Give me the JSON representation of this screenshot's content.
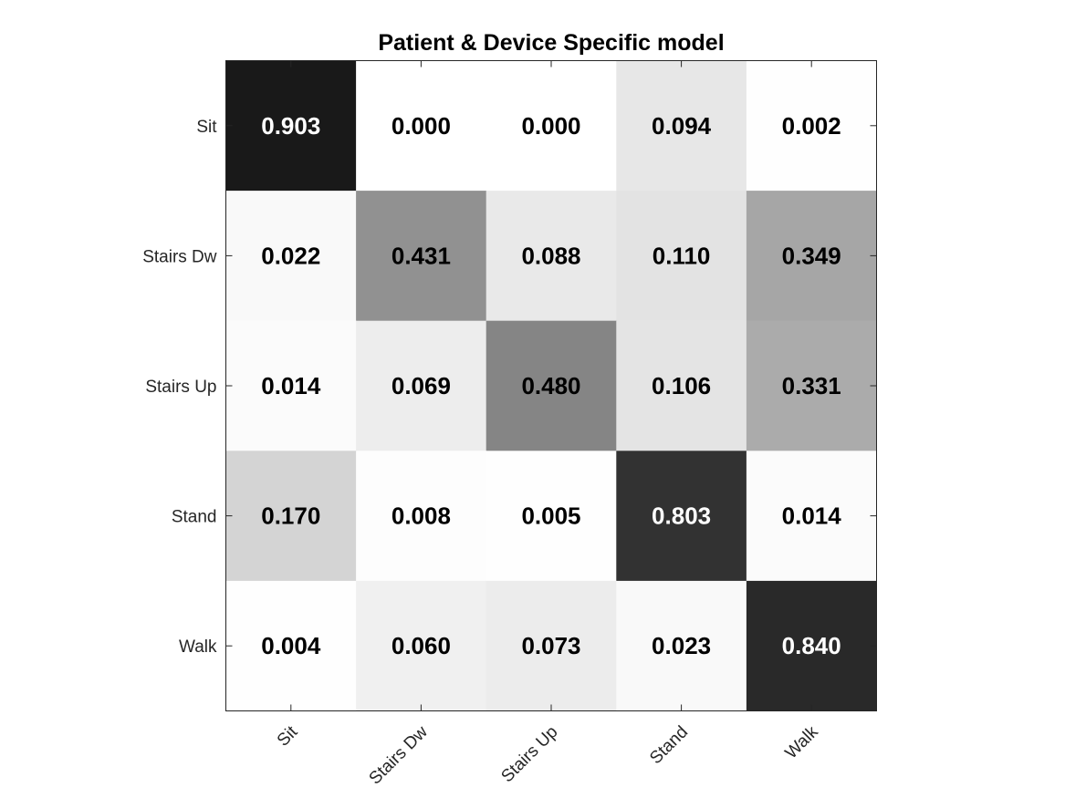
{
  "chart_data": {
    "type": "heatmap",
    "title": "Patient & Device Specific model",
    "xlabel": "",
    "ylabel": "",
    "x_categories": [
      "Sit",
      "Stairs Dw",
      "Stairs Up",
      "Stand",
      "Walk"
    ],
    "y_categories": [
      "Sit",
      "Stairs Dw",
      "Stairs Up",
      "Stand",
      "Walk"
    ],
    "values": [
      [
        0.903,
        0.0,
        0.0,
        0.094,
        0.002
      ],
      [
        0.022,
        0.431,
        0.088,
        0.11,
        0.349
      ],
      [
        0.014,
        0.069,
        0.48,
        0.106,
        0.331
      ],
      [
        0.17,
        0.008,
        0.005,
        0.803,
        0.014
      ],
      [
        0.004,
        0.06,
        0.073,
        0.023,
        0.84
      ]
    ],
    "value_labels": [
      [
        "0.903",
        "0.000",
        "0.000",
        "0.094",
        "0.002"
      ],
      [
        "0.022",
        "0.431",
        "0.088",
        "0.110",
        "0.349"
      ],
      [
        "0.014",
        "0.069",
        "0.480",
        "0.106",
        "0.331"
      ],
      [
        "0.170",
        "0.008",
        "0.005",
        "0.803",
        "0.014"
      ],
      [
        "0.004",
        "0.060",
        "0.073",
        "0.023",
        "0.840"
      ]
    ],
    "colormap": "grayscale-reversed",
    "color_range": [
      0,
      1
    ],
    "grid": false,
    "legend": "none"
  }
}
